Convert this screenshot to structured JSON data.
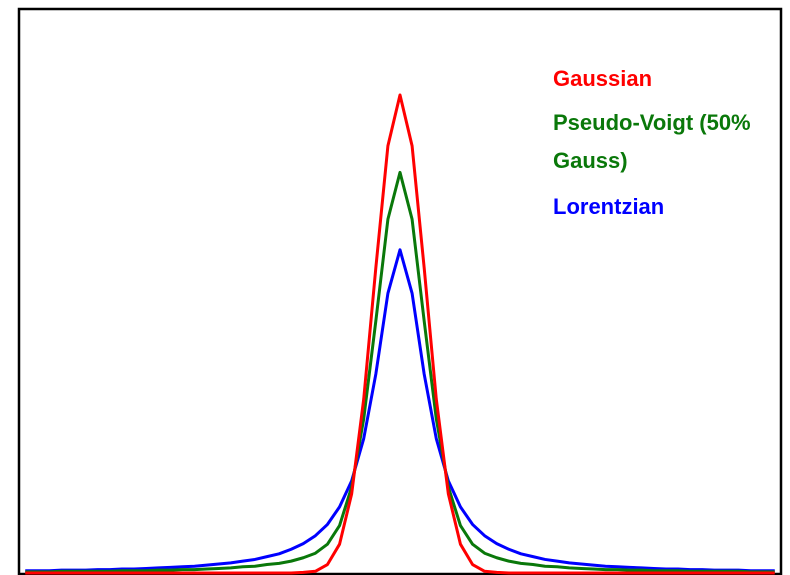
{
  "chart_data": {
    "type": "line",
    "x": [
      -31,
      -30,
      -29,
      -28,
      -27,
      -26,
      -25,
      -24,
      -23,
      -22,
      -21,
      -20,
      -19,
      -18,
      -17,
      -16,
      -15,
      -14,
      -13,
      -12,
      -11,
      -10,
      -9,
      -8,
      -7,
      -6,
      -5,
      -4,
      -3,
      -2,
      -1,
      0,
      1,
      2,
      3,
      4,
      5,
      6,
      7,
      8,
      9,
      10,
      11,
      12,
      13,
      14,
      15,
      16,
      17,
      18,
      19,
      20,
      21,
      22,
      23,
      24,
      25,
      26,
      27,
      28,
      29,
      30,
      31
    ],
    "xlim": [
      -31.6,
      31.6
    ],
    "ylim": [
      0,
      100
    ],
    "series": [
      {
        "name": "Gaussian",
        "color": "#ff0000",
        "values": [
          0,
          0,
          0,
          0,
          0,
          0,
          0,
          0,
          0,
          0,
          0,
          0,
          0,
          0,
          0,
          0,
          0,
          0,
          0,
          0,
          0,
          0,
          0,
          0.1,
          0.3,
          1.5,
          5.1,
          14.0,
          30.8,
          54.0,
          75.6,
          84.6,
          75.6,
          54.0,
          30.8,
          14.0,
          5.1,
          1.5,
          0.3,
          0.1,
          0,
          0,
          0,
          0,
          0,
          0,
          0,
          0,
          0,
          0,
          0,
          0,
          0,
          0,
          0,
          0,
          0,
          0,
          0,
          0,
          0,
          0,
          0
        ]
      },
      {
        "name": "Pseudo-Voigt (50% Gauss)",
        "color": "#0a780a",
        "values": [
          0.2,
          0.2,
          0.2,
          0.3,
          0.3,
          0.3,
          0.3,
          0.3,
          0.4,
          0.4,
          0.4,
          0.5,
          0.5,
          0.6,
          0.6,
          0.7,
          0.8,
          0.9,
          1.1,
          1.2,
          1.5,
          1.7,
          2.1,
          2.7,
          3.5,
          5.1,
          8.4,
          15.2,
          27.3,
          44.6,
          62.6,
          70.9,
          62.6,
          44.6,
          27.3,
          15.2,
          8.4,
          5.1,
          3.5,
          2.7,
          2.1,
          1.7,
          1.5,
          1.2,
          1.1,
          0.9,
          0.8,
          0.7,
          0.6,
          0.6,
          0.5,
          0.5,
          0.4,
          0.4,
          0.4,
          0.3,
          0.3,
          0.3,
          0.3,
          0.3,
          0.2,
          0.2,
          0.2
        ]
      },
      {
        "name": "Lorentzian",
        "color": "#0000ff",
        "values": [
          0.4,
          0.4,
          0.4,
          0.5,
          0.5,
          0.5,
          0.6,
          0.6,
          0.7,
          0.7,
          0.8,
          0.9,
          1.0,
          1.1,
          1.2,
          1.4,
          1.6,
          1.8,
          2.1,
          2.4,
          2.9,
          3.4,
          4.2,
          5.2,
          6.6,
          8.6,
          11.7,
          16.3,
          23.8,
          35.2,
          49.5,
          57.2,
          49.5,
          35.2,
          23.8,
          16.3,
          11.7,
          8.6,
          6.6,
          5.2,
          4.2,
          3.4,
          2.9,
          2.4,
          2.1,
          1.8,
          1.6,
          1.4,
          1.2,
          1.1,
          1.0,
          0.9,
          0.8,
          0.7,
          0.7,
          0.6,
          0.6,
          0.5,
          0.5,
          0.5,
          0.4,
          0.4,
          0.4
        ]
      }
    ]
  }
}
